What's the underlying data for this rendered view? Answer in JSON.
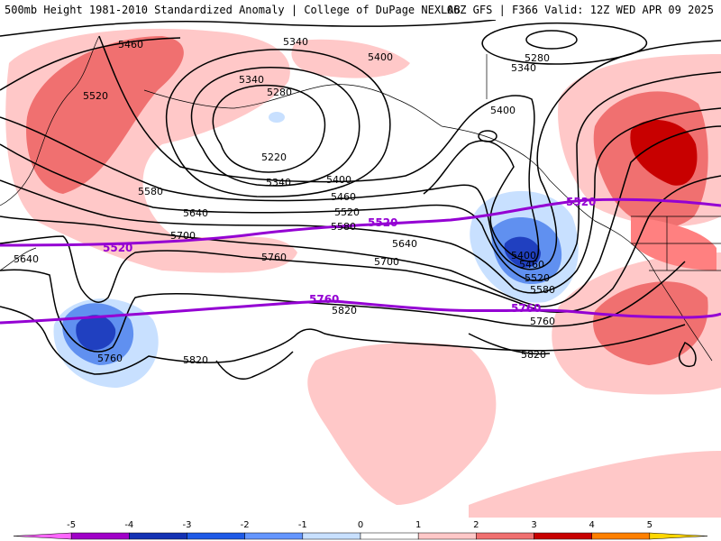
{
  "header": {
    "title_left": "500mb Height 1981-2010 Standardized Anomaly | College of DuPage NEXLAB",
    "title_right": "06Z GFS | F366 Valid: 12Z WED APR 09 2025"
  },
  "colors": {
    "anom_pos1": "#ffc8c8",
    "anom_pos2": "#f07070",
    "anom_pos3": "#c80000",
    "anom_neg1": "#c8e0ff",
    "anom_neg2": "#6090f0",
    "anom_neg3": "#2040c0",
    "contour": "#000000",
    "highlight_contour": "#9400d3"
  },
  "contour_labels": [
    {
      "id": "5460-nw",
      "text": "5460"
    },
    {
      "id": "5520-nw",
      "text": "5520"
    },
    {
      "id": "5340-top",
      "text": "5340"
    },
    {
      "id": "5400-top",
      "text": "5400"
    },
    {
      "id": "5340-low",
      "text": "5340"
    },
    {
      "id": "5280-low",
      "text": "5280"
    },
    {
      "id": "5220-low",
      "text": "5220"
    },
    {
      "id": "5340-lowb",
      "text": "5340"
    },
    {
      "id": "5400-mid",
      "text": "5400"
    },
    {
      "id": "5460-mid",
      "text": "5460"
    },
    {
      "id": "5520-mid",
      "text": "5520"
    },
    {
      "id": "5580-mid",
      "text": "5580"
    },
    {
      "id": "5580-w",
      "text": "5580"
    },
    {
      "id": "5640-w",
      "text": "5640"
    },
    {
      "id": "5700-w",
      "text": "5700"
    },
    {
      "id": "5640-center",
      "text": "5640"
    },
    {
      "id": "5700-center",
      "text": "5700"
    },
    {
      "id": "5760-center",
      "text": "5760"
    },
    {
      "id": "5640-far-w",
      "text": "5640"
    },
    {
      "id": "5400-ne",
      "text": "5400"
    },
    {
      "id": "5280-ne",
      "text": "5280"
    },
    {
      "id": "5340-ne",
      "text": "5340"
    },
    {
      "id": "5400-trough",
      "text": "5400"
    },
    {
      "id": "5460-trough",
      "text": "5460"
    },
    {
      "id": "5520-trough",
      "text": "5520"
    },
    {
      "id": "5580-trough",
      "text": "5580"
    },
    {
      "id": "5760-e",
      "text": "5760"
    },
    {
      "id": "5820-e",
      "text": "5820"
    },
    {
      "id": "5820-center",
      "text": "5820"
    },
    {
      "id": "5820-sw",
      "text": "5820"
    },
    {
      "id": "5760-sw",
      "text": "5760"
    }
  ],
  "highlight_labels": [
    {
      "id": "5520-purple-w",
      "text": "5520"
    },
    {
      "id": "5520-purple-c",
      "text": "5520"
    },
    {
      "id": "5520-purple-e",
      "text": "5520"
    },
    {
      "id": "5760-purple-c",
      "text": "5760"
    },
    {
      "id": "5760-purple-e",
      "text": "5760"
    }
  ],
  "colorbar": {
    "ticks": [
      "-5",
      "-4",
      "-3",
      "-2",
      "-1",
      "0",
      "1",
      "2",
      "3",
      "4",
      "5"
    ],
    "colors": [
      "#ff66ff",
      "#a000c8",
      "#1432b4",
      "#1e5ae6",
      "#6496ff",
      "#c8e0ff",
      "#ffffff",
      "#ffc8c8",
      "#f07070",
      "#c80000",
      "#ff8000",
      "#ffd700"
    ]
  }
}
